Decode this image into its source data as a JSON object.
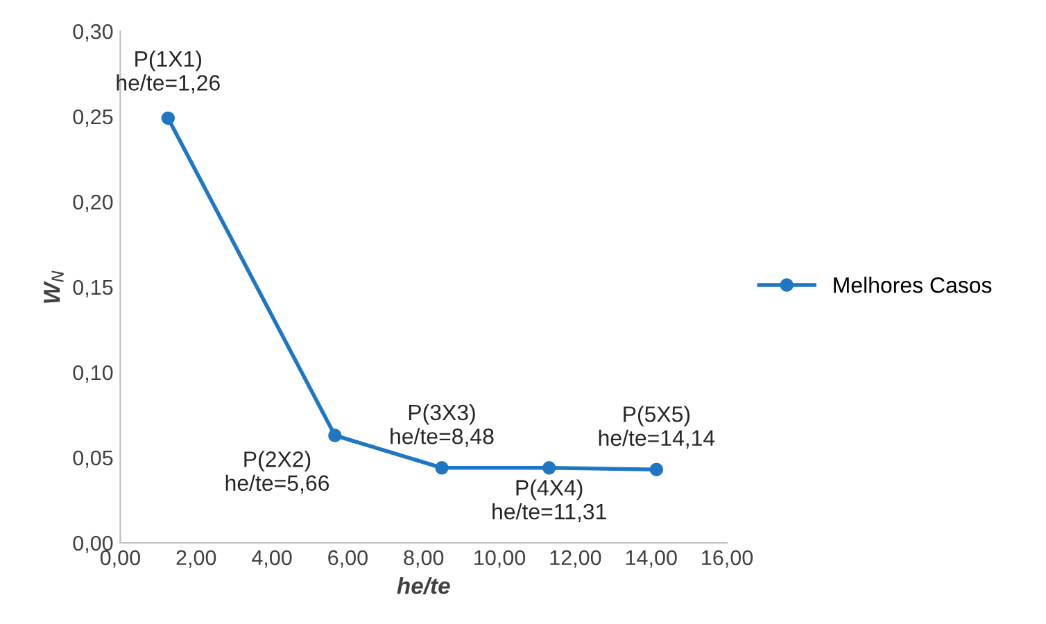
{
  "chart_data": {
    "type": "line",
    "xlabel": "he/te",
    "ylabel": "W$_{N}$",
    "x": [
      1.26,
      5.66,
      8.48,
      11.31,
      14.14
    ],
    "series": [
      {
        "name": "Melhores Casos",
        "color": "#1f77c4",
        "values": [
          0.249,
          0.063,
          0.044,
          0.044,
          0.043
        ]
      }
    ],
    "xlim": [
      0,
      16
    ],
    "ylim": [
      0,
      0.3
    ],
    "xticks": [
      {
        "value": 0,
        "label": "0,00"
      },
      {
        "value": 2,
        "label": "2,00"
      },
      {
        "value": 4,
        "label": "4,00"
      },
      {
        "value": 6,
        "label": "6,00"
      },
      {
        "value": 8,
        "label": "8,00"
      },
      {
        "value": 10,
        "label": "10,00"
      },
      {
        "value": 12,
        "label": "12,00"
      },
      {
        "value": 14,
        "label": "14,00"
      },
      {
        "value": 16,
        "label": "16,00"
      }
    ],
    "yticks": [
      {
        "value": 0,
        "label": "0,00"
      },
      {
        "value": 0.05,
        "label": "0,05"
      },
      {
        "value": 0.1,
        "label": "0,10"
      },
      {
        "value": 0.15,
        "label": "0,15"
      },
      {
        "value": 0.2,
        "label": "0,20"
      },
      {
        "value": 0.25,
        "label": "0,25"
      },
      {
        "value": 0.3,
        "label": "0,30"
      }
    ],
    "annotations": [
      {
        "text": "P(1X1)\nhe/te=1,26",
        "x": 1.26,
        "y": 0.249
      },
      {
        "text": "P(2X2)\nhe/te=5,66",
        "x": 5.66,
        "y": 0.063
      },
      {
        "text": "P(3X3)\nhe/te=8,48",
        "x": 8.48,
        "y": 0.044
      },
      {
        "text": "P(4X4)\nhe/te=11,31",
        "x": 11.31,
        "y": 0.044
      },
      {
        "text": "P(5X5)\nhe/te=14,14",
        "x": 14.14,
        "y": 0.043
      }
    ],
    "grid": false,
    "legend": "right",
    "marker": "circle",
    "line_style": "solid"
  }
}
